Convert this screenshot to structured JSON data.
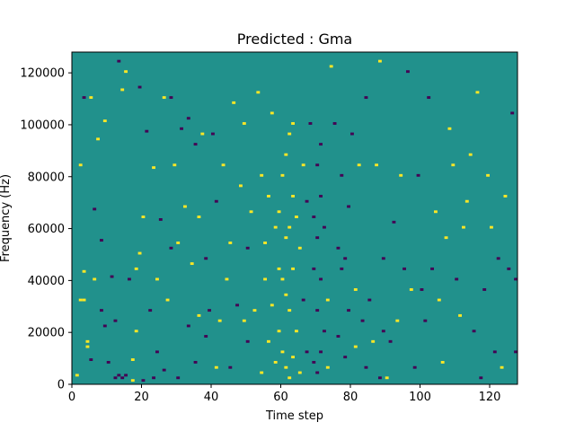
{
  "chart_data": {
    "type": "heatmap",
    "title": "Predicted : Gma",
    "xlabel": "Time step",
    "ylabel": "Frequency (Hz)",
    "xlim": [
      0,
      128
    ],
    "ylim": [
      0,
      128000
    ],
    "xticks": [
      0,
      20,
      40,
      60,
      80,
      100,
      120
    ],
    "yticks": [
      0,
      20000,
      40000,
      60000,
      80000,
      100000,
      120000
    ],
    "grid": false,
    "legend": "none",
    "colors": {
      "background": "#21918c",
      "low": "#440154",
      "high": "#fde725"
    },
    "n_time_bins": 128,
    "n_freq_bins": 128,
    "cells": [
      {
        "t": 1,
        "f": 3,
        "v": "high"
      },
      {
        "t": 2,
        "f": 32,
        "v": "high"
      },
      {
        "t": 2,
        "f": 84,
        "v": "high"
      },
      {
        "t": 3,
        "f": 32,
        "v": "high"
      },
      {
        "t": 3,
        "f": 43,
        "v": "high"
      },
      {
        "t": 3,
        "f": 110,
        "v": "low"
      },
      {
        "t": 4,
        "f": 14,
        "v": "high"
      },
      {
        "t": 4,
        "f": 16,
        "v": "high"
      },
      {
        "t": 5,
        "f": 9,
        "v": "low"
      },
      {
        "t": 5,
        "f": 110,
        "v": "high"
      },
      {
        "t": 6,
        "f": 40,
        "v": "high"
      },
      {
        "t": 6,
        "f": 67,
        "v": "low"
      },
      {
        "t": 7,
        "f": 94,
        "v": "high"
      },
      {
        "t": 8,
        "f": 28,
        "v": "low"
      },
      {
        "t": 8,
        "f": 55,
        "v": "low"
      },
      {
        "t": 9,
        "f": 22,
        "v": "low"
      },
      {
        "t": 9,
        "f": 101,
        "v": "high"
      },
      {
        "t": 10,
        "f": 8,
        "v": "low"
      },
      {
        "t": 11,
        "f": 41,
        "v": "low"
      },
      {
        "t": 12,
        "f": 2,
        "v": "low"
      },
      {
        "t": 12,
        "f": 24,
        "v": "low"
      },
      {
        "t": 13,
        "f": 3,
        "v": "low"
      },
      {
        "t": 13,
        "f": 124,
        "v": "low"
      },
      {
        "t": 14,
        "f": 2,
        "v": "low"
      },
      {
        "t": 14,
        "f": 113,
        "v": "high"
      },
      {
        "t": 15,
        "f": 3,
        "v": "low"
      },
      {
        "t": 15,
        "f": 120,
        "v": "high"
      },
      {
        "t": 16,
        "f": 40,
        "v": "low"
      },
      {
        "t": 17,
        "f": 1,
        "v": "high"
      },
      {
        "t": 17,
        "f": 9,
        "v": "high"
      },
      {
        "t": 18,
        "f": 20,
        "v": "high"
      },
      {
        "t": 18,
        "f": 44,
        "v": "high"
      },
      {
        "t": 19,
        "f": 50,
        "v": "high"
      },
      {
        "t": 19,
        "f": 114,
        "v": "low"
      },
      {
        "t": 20,
        "f": 1,
        "v": "low"
      },
      {
        "t": 20,
        "f": 64,
        "v": "high"
      },
      {
        "t": 21,
        "f": 97,
        "v": "low"
      },
      {
        "t": 22,
        "f": 28,
        "v": "low"
      },
      {
        "t": 23,
        "f": 2,
        "v": "low"
      },
      {
        "t": 23,
        "f": 83,
        "v": "high"
      },
      {
        "t": 24,
        "f": 12,
        "v": "low"
      },
      {
        "t": 24,
        "f": 40,
        "v": "high"
      },
      {
        "t": 25,
        "f": 63,
        "v": "low"
      },
      {
        "t": 26,
        "f": 5,
        "v": "low"
      },
      {
        "t": 26,
        "f": 110,
        "v": "high"
      },
      {
        "t": 27,
        "f": 32,
        "v": "high"
      },
      {
        "t": 28,
        "f": 52,
        "v": "low"
      },
      {
        "t": 28,
        "f": 110,
        "v": "low"
      },
      {
        "t": 29,
        "f": 84,
        "v": "high"
      },
      {
        "t": 30,
        "f": 2,
        "v": "low"
      },
      {
        "t": 30,
        "f": 54,
        "v": "high"
      },
      {
        "t": 31,
        "f": 98,
        "v": "low"
      },
      {
        "t": 32,
        "f": 68,
        "v": "high"
      },
      {
        "t": 33,
        "f": 22,
        "v": "low"
      },
      {
        "t": 33,
        "f": 102,
        "v": "low"
      },
      {
        "t": 34,
        "f": 46,
        "v": "high"
      },
      {
        "t": 35,
        "f": 8,
        "v": "low"
      },
      {
        "t": 35,
        "f": 92,
        "v": "low"
      },
      {
        "t": 36,
        "f": 26,
        "v": "high"
      },
      {
        "t": 36,
        "f": 64,
        "v": "high"
      },
      {
        "t": 37,
        "f": 96,
        "v": "high"
      },
      {
        "t": 38,
        "f": 18,
        "v": "low"
      },
      {
        "t": 38,
        "f": 48,
        "v": "low"
      },
      {
        "t": 39,
        "f": 28,
        "v": "low"
      },
      {
        "t": 40,
        "f": 96,
        "v": "low"
      },
      {
        "t": 41,
        "f": 6,
        "v": "high"
      },
      {
        "t": 41,
        "f": 70,
        "v": "low"
      },
      {
        "t": 42,
        "f": 24,
        "v": "high"
      },
      {
        "t": 43,
        "f": 84,
        "v": "high"
      },
      {
        "t": 44,
        "f": 40,
        "v": "high"
      },
      {
        "t": 45,
        "f": 6,
        "v": "low"
      },
      {
        "t": 45,
        "f": 54,
        "v": "high"
      },
      {
        "t": 46,
        "f": 108,
        "v": "high"
      },
      {
        "t": 47,
        "f": 30,
        "v": "low"
      },
      {
        "t": 48,
        "f": 76,
        "v": "high"
      },
      {
        "t": 49,
        "f": 24,
        "v": "high"
      },
      {
        "t": 49,
        "f": 100,
        "v": "high"
      },
      {
        "t": 50,
        "f": 16,
        "v": "low"
      },
      {
        "t": 50,
        "f": 52,
        "v": "low"
      },
      {
        "t": 51,
        "f": 66,
        "v": "high"
      },
      {
        "t": 52,
        "f": 28,
        "v": "high"
      },
      {
        "t": 53,
        "f": 112,
        "v": "high"
      },
      {
        "t": 54,
        "f": 4,
        "v": "high"
      },
      {
        "t": 54,
        "f": 80,
        "v": "high"
      },
      {
        "t": 55,
        "f": 40,
        "v": "high"
      },
      {
        "t": 55,
        "f": 54,
        "v": "high"
      },
      {
        "t": 56,
        "f": 16,
        "v": "high"
      },
      {
        "t": 56,
        "f": 72,
        "v": "high"
      },
      {
        "t": 57,
        "f": 30,
        "v": "high"
      },
      {
        "t": 57,
        "f": 104,
        "v": "high"
      },
      {
        "t": 58,
        "f": 8,
        "v": "high"
      },
      {
        "t": 58,
        "f": 60,
        "v": "high"
      },
      {
        "t": 59,
        "f": 20,
        "v": "high"
      },
      {
        "t": 59,
        "f": 44,
        "v": "high"
      },
      {
        "t": 59,
        "f": 66,
        "v": "high"
      },
      {
        "t": 60,
        "f": 12,
        "v": "high"
      },
      {
        "t": 60,
        "f": 40,
        "v": "high"
      },
      {
        "t": 60,
        "f": 80,
        "v": "high"
      },
      {
        "t": 61,
        "f": 6,
        "v": "high"
      },
      {
        "t": 61,
        "f": 34,
        "v": "high"
      },
      {
        "t": 61,
        "f": 56,
        "v": "high"
      },
      {
        "t": 61,
        "f": 88,
        "v": "high"
      },
      {
        "t": 62,
        "f": 2,
        "v": "high"
      },
      {
        "t": 62,
        "f": 28,
        "v": "high"
      },
      {
        "t": 62,
        "f": 60,
        "v": "high"
      },
      {
        "t": 62,
        "f": 96,
        "v": "high"
      },
      {
        "t": 63,
        "f": 10,
        "v": "high"
      },
      {
        "t": 63,
        "f": 44,
        "v": "high"
      },
      {
        "t": 63,
        "f": 72,
        "v": "high"
      },
      {
        "t": 63,
        "f": 100,
        "v": "high"
      },
      {
        "t": 64,
        "f": 20,
        "v": "high"
      },
      {
        "t": 64,
        "f": 64,
        "v": "high"
      },
      {
        "t": 65,
        "f": 4,
        "v": "high"
      },
      {
        "t": 65,
        "f": 52,
        "v": "high"
      },
      {
        "t": 66,
        "f": 32,
        "v": "low"
      },
      {
        "t": 66,
        "f": 84,
        "v": "high"
      },
      {
        "t": 67,
        "f": 12,
        "v": "low"
      },
      {
        "t": 67,
        "f": 70,
        "v": "low"
      },
      {
        "t": 68,
        "f": 100,
        "v": "low"
      },
      {
        "t": 69,
        "f": 8,
        "v": "low"
      },
      {
        "t": 69,
        "f": 44,
        "v": "low"
      },
      {
        "t": 69,
        "f": 64,
        "v": "low"
      },
      {
        "t": 70,
        "f": 4,
        "v": "low"
      },
      {
        "t": 70,
        "f": 28,
        "v": "low"
      },
      {
        "t": 70,
        "f": 56,
        "v": "low"
      },
      {
        "t": 70,
        "f": 84,
        "v": "low"
      },
      {
        "t": 71,
        "f": 12,
        "v": "low"
      },
      {
        "t": 71,
        "f": 40,
        "v": "low"
      },
      {
        "t": 71,
        "f": 72,
        "v": "low"
      },
      {
        "t": 71,
        "f": 92,
        "v": "low"
      },
      {
        "t": 72,
        "f": 20,
        "v": "low"
      },
      {
        "t": 72,
        "f": 60,
        "v": "low"
      },
      {
        "t": 73,
        "f": 6,
        "v": "high"
      },
      {
        "t": 73,
        "f": 32,
        "v": "high"
      },
      {
        "t": 74,
        "f": 122,
        "v": "high"
      },
      {
        "t": 75,
        "f": 100,
        "v": "low"
      },
      {
        "t": 76,
        "f": 18,
        "v": "low"
      },
      {
        "t": 76,
        "f": 52,
        "v": "low"
      },
      {
        "t": 77,
        "f": 44,
        "v": "low"
      },
      {
        "t": 77,
        "f": 80,
        "v": "low"
      },
      {
        "t": 78,
        "f": 10,
        "v": "low"
      },
      {
        "t": 78,
        "f": 48,
        "v": "low"
      },
      {
        "t": 79,
        "f": 28,
        "v": "low"
      },
      {
        "t": 79,
        "f": 68,
        "v": "low"
      },
      {
        "t": 80,
        "f": 96,
        "v": "low"
      },
      {
        "t": 81,
        "f": 14,
        "v": "high"
      },
      {
        "t": 81,
        "f": 36,
        "v": "high"
      },
      {
        "t": 82,
        "f": 84,
        "v": "high"
      },
      {
        "t": 83,
        "f": 24,
        "v": "low"
      },
      {
        "t": 84,
        "f": 6,
        "v": "low"
      },
      {
        "t": 84,
        "f": 110,
        "v": "low"
      },
      {
        "t": 85,
        "f": 32,
        "v": "low"
      },
      {
        "t": 86,
        "f": 16,
        "v": "high"
      },
      {
        "t": 87,
        "f": 84,
        "v": "high"
      },
      {
        "t": 88,
        "f": 2,
        "v": "low"
      },
      {
        "t": 88,
        "f": 124,
        "v": "high"
      },
      {
        "t": 89,
        "f": 20,
        "v": "low"
      },
      {
        "t": 89,
        "f": 48,
        "v": "low"
      },
      {
        "t": 90,
        "f": 2,
        "v": "high"
      },
      {
        "t": 91,
        "f": 16,
        "v": "low"
      },
      {
        "t": 92,
        "f": 62,
        "v": "low"
      },
      {
        "t": 93,
        "f": 24,
        "v": "high"
      },
      {
        "t": 94,
        "f": 80,
        "v": "high"
      },
      {
        "t": 95,
        "f": 44,
        "v": "low"
      },
      {
        "t": 96,
        "f": 120,
        "v": "low"
      },
      {
        "t": 97,
        "f": 36,
        "v": "high"
      },
      {
        "t": 98,
        "f": 6,
        "v": "low"
      },
      {
        "t": 99,
        "f": 80,
        "v": "low"
      },
      {
        "t": 100,
        "f": 36,
        "v": "low"
      },
      {
        "t": 101,
        "f": 24,
        "v": "low"
      },
      {
        "t": 102,
        "f": 110,
        "v": "low"
      },
      {
        "t": 103,
        "f": 44,
        "v": "low"
      },
      {
        "t": 104,
        "f": 66,
        "v": "high"
      },
      {
        "t": 105,
        "f": 32,
        "v": "high"
      },
      {
        "t": 106,
        "f": 8,
        "v": "high"
      },
      {
        "t": 107,
        "f": 56,
        "v": "high"
      },
      {
        "t": 108,
        "f": 98,
        "v": "high"
      },
      {
        "t": 109,
        "f": 84,
        "v": "high"
      },
      {
        "t": 110,
        "f": 40,
        "v": "low"
      },
      {
        "t": 111,
        "f": 26,
        "v": "high"
      },
      {
        "t": 112,
        "f": 60,
        "v": "high"
      },
      {
        "t": 113,
        "f": 70,
        "v": "high"
      },
      {
        "t": 114,
        "f": 88,
        "v": "high"
      },
      {
        "t": 115,
        "f": 20,
        "v": "low"
      },
      {
        "t": 116,
        "f": 112,
        "v": "high"
      },
      {
        "t": 117,
        "f": 2,
        "v": "low"
      },
      {
        "t": 118,
        "f": 36,
        "v": "low"
      },
      {
        "t": 119,
        "f": 80,
        "v": "high"
      },
      {
        "t": 120,
        "f": 60,
        "v": "high"
      },
      {
        "t": 121,
        "f": 12,
        "v": "low"
      },
      {
        "t": 122,
        "f": 48,
        "v": "low"
      },
      {
        "t": 123,
        "f": 6,
        "v": "high"
      },
      {
        "t": 124,
        "f": 72,
        "v": "high"
      },
      {
        "t": 125,
        "f": 44,
        "v": "low"
      },
      {
        "t": 126,
        "f": 104,
        "v": "low"
      },
      {
        "t": 127,
        "f": 40,
        "v": "low"
      },
      {
        "t": 127,
        "f": 12,
        "v": "low"
      }
    ]
  }
}
